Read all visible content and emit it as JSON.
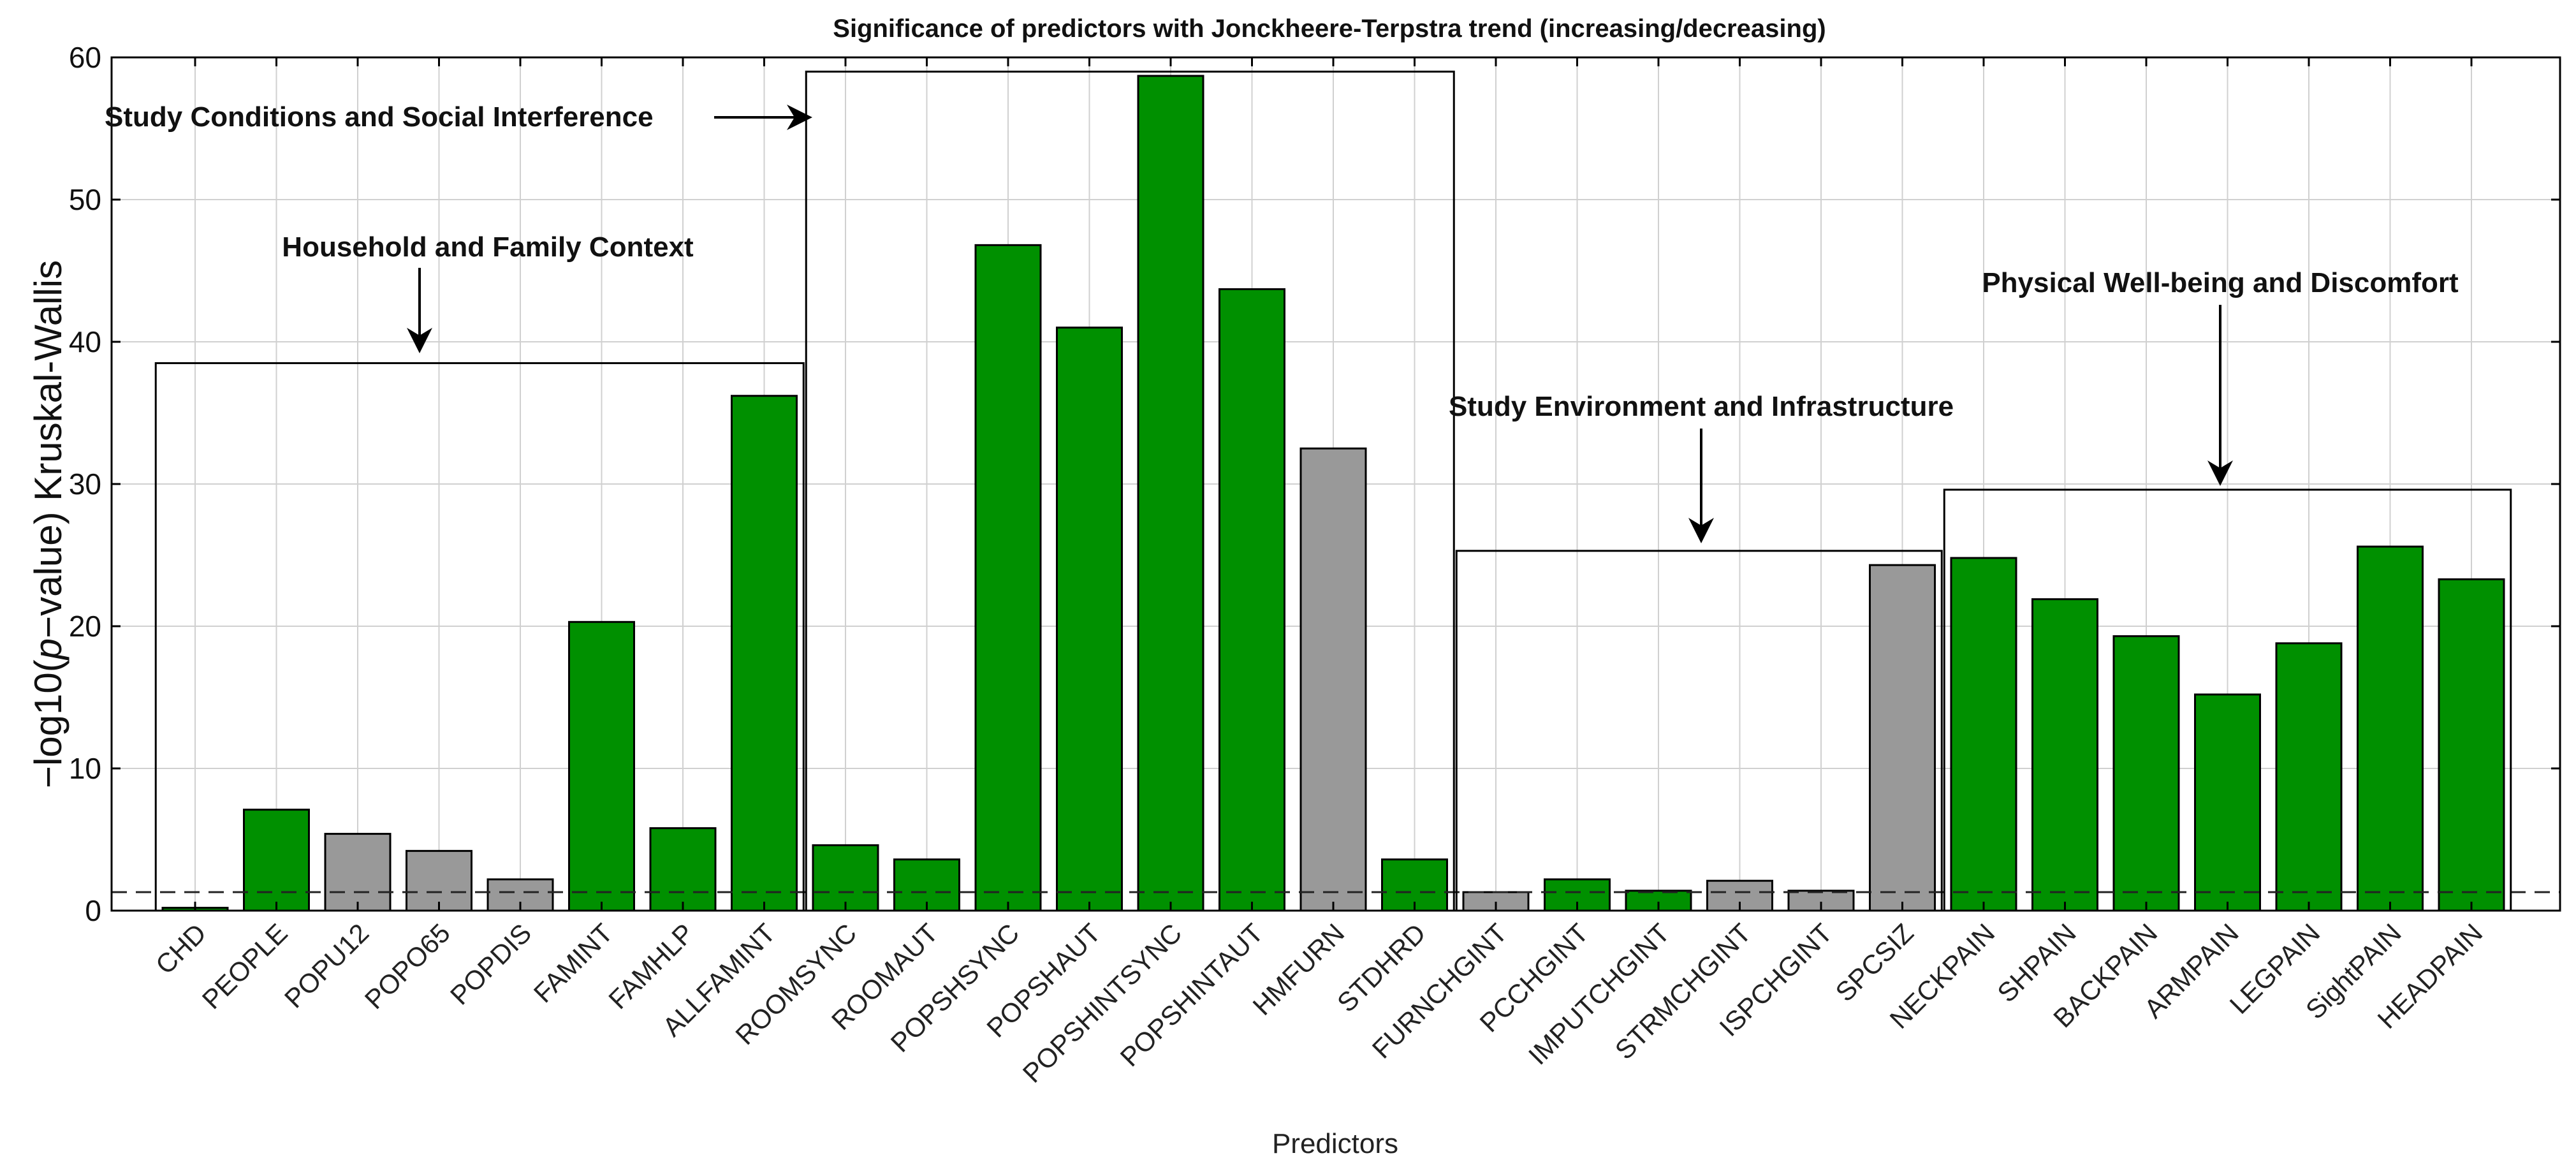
{
  "chart_data": {
    "type": "bar",
    "title": "Significance of predictors with Jonckheere-Terpstra trend (increasing/decreasing)",
    "xlabel": "Predictors",
    "ylabel_prefix": "−log10(",
    "ylabel_italic": "p",
    "ylabel_suffix": "−value) Kruskal-Wallis",
    "ylim": [
      0,
      60
    ],
    "yticks": [
      "0",
      "10",
      "20",
      "30",
      "40",
      "50",
      "60"
    ],
    "grid": true,
    "threshold": 1.3,
    "colors": {
      "significant": "#009000",
      "not_significant": "#999999",
      "edge": "#000000"
    },
    "categories": [
      "CHD",
      "PEOPLE",
      "POPU12",
      "POPO65",
      "POPDIS",
      "FAMINT",
      "FAMHLP",
      "ALLFAMINT",
      "ROOMSYNC",
      "ROOMAUT",
      "POPSHSYNC",
      "POPSHAUT",
      "POPSHINTSYNC",
      "POPSHINTAUT",
      "HMFURN",
      "STDHRD",
      "FURNCHGINT",
      "PCCHGINT",
      "IMPUTCHGINT",
      "STRMCHGINT",
      "ISPCHGINT",
      "SPCSIZ",
      "NECKPAIN",
      "SHPAIN",
      "BACKPAIN",
      "ARMPAIN",
      "LEGPAIN",
      "SightPAIN",
      "HEADPAIN"
    ],
    "values": [
      0.2,
      7.1,
      5.4,
      4.2,
      2.2,
      20.3,
      5.8,
      36.2,
      4.6,
      3.6,
      46.8,
      41.0,
      58.7,
      43.7,
      32.5,
      3.6,
      1.3,
      2.2,
      1.4,
      2.1,
      1.4,
      24.3,
      24.8,
      21.9,
      19.3,
      15.2,
      18.8,
      25.6,
      23.3
    ],
    "significant": [
      true,
      true,
      false,
      false,
      false,
      true,
      true,
      true,
      true,
      true,
      true,
      true,
      true,
      true,
      false,
      true,
      false,
      true,
      true,
      false,
      false,
      false,
      true,
      true,
      true,
      true,
      true,
      true,
      true
    ],
    "groups": [
      {
        "label": "Household and Family Context",
        "first": 0,
        "last": 7,
        "top": 38.5
      },
      {
        "label": "Study Conditions and Social Interference",
        "first": 8,
        "last": 15,
        "top": 59.0
      },
      {
        "label": "Study Environment and Infrastructure",
        "first": 16,
        "last": 21,
        "top": 25.3
      },
      {
        "label": "Physical Well-being and Discomfort",
        "first": 22,
        "last": 28,
        "top": 29.6
      }
    ]
  }
}
